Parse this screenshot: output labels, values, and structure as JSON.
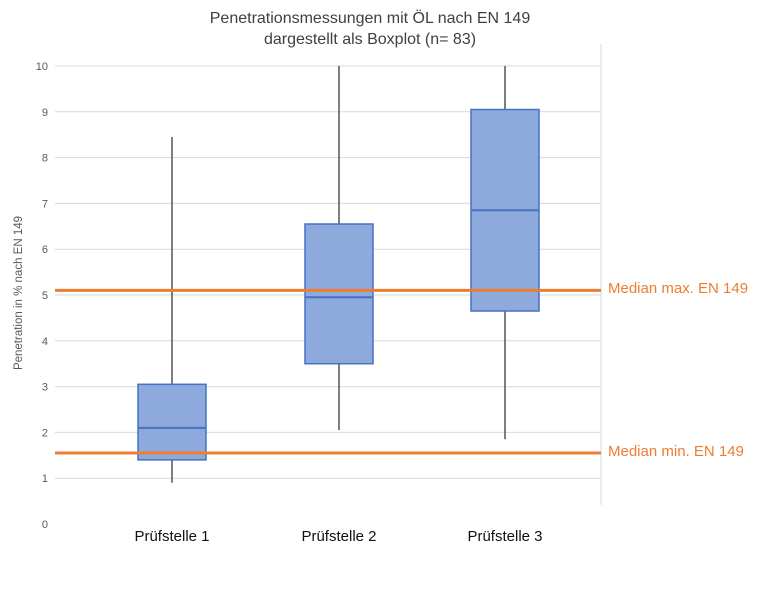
{
  "title": {
    "line1": "Penetrationsmessungen mit ÖL nach EN 149",
    "line2": "dargestellt als Boxplot  (n= 83)"
  },
  "chart_data": {
    "type": "boxplot",
    "title": "Penetrationsmessungen mit ÖL nach EN 149 dargestellt als Boxplot (n= 83)",
    "categories": [
      "Prüfstelle 1",
      "Prüfstelle 2",
      "Prüfstelle 3"
    ],
    "boxes": [
      {
        "category": "Prüfstelle 1",
        "whisker_low": 0.9,
        "q1": 1.4,
        "median": 2.1,
        "q3": 3.05,
        "whisker_high": 8.45
      },
      {
        "category": "Prüfstelle 2",
        "whisker_low": 2.05,
        "q1": 3.5,
        "median": 4.95,
        "q3": 6.55,
        "whisker_high": 10
      },
      {
        "category": "Prüfstelle 3",
        "whisker_low": 1.85,
        "q1": 4.65,
        "median": 6.85,
        "q3": 9.05,
        "whisker_high": 10
      }
    ],
    "reference_lines": [
      {
        "label": "Median max. EN 149",
        "value": 5.1
      },
      {
        "label": "Median min. EN 149",
        "value": 1.55
      }
    ],
    "ylabel": "Penetration in % nach EN 149",
    "ylim": [
      0,
      10
    ],
    "y_step": 1,
    "grid": true,
    "legend": "none",
    "colors": {
      "box_fill": "#8EA9DB",
      "box_border": "#4472C4",
      "median_line": "#4472C4",
      "whisker": "#555555",
      "gridline": "#D9D9D9",
      "plot_border": "#D9D9D9",
      "reference_line": "#ED7D31",
      "title_text": "#404040",
      "axis_text": "#595959",
      "category_text": "#111111"
    }
  }
}
